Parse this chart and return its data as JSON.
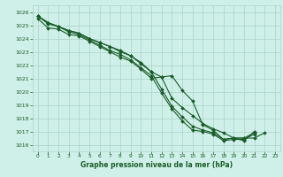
{
  "title": "Graphe pression niveau de la mer (hPa)",
  "background_color": "#cff0e8",
  "grid_color": "#b0d8cc",
  "line_color": "#1a5c2a",
  "xlim": [
    -0.5,
    23.5
  ],
  "ylim": [
    1015.5,
    1026.5
  ],
  "yticks": [
    1016,
    1017,
    1018,
    1019,
    1020,
    1021,
    1022,
    1023,
    1024,
    1025,
    1026
  ],
  "xticks": [
    0,
    1,
    2,
    3,
    4,
    5,
    6,
    7,
    8,
    9,
    10,
    11,
    12,
    13,
    14,
    15,
    16,
    17,
    18,
    19,
    20,
    21,
    22,
    23
  ],
  "series": [
    [
      1025.7,
      1025.2,
      1024.9,
      1024.6,
      1024.4,
      1024.0,
      1023.7,
      1023.4,
      1023.1,
      1022.7,
      1022.2,
      1021.5,
      1021.1,
      1019.5,
      1018.8,
      1018.2,
      1017.6,
      1017.2,
      1016.9,
      1016.5,
      1016.5,
      1016.5,
      1016.9,
      null
    ],
    [
      1025.7,
      1025.2,
      1024.9,
      1024.6,
      1024.4,
      1024.0,
      1023.7,
      1023.4,
      1023.0,
      1022.7,
      1022.1,
      1021.5,
      1020.2,
      1018.9,
      1018.1,
      1017.4,
      1017.1,
      1016.9,
      1016.4,
      1016.5,
      1016.5,
      1016.9,
      null,
      null
    ],
    [
      1025.7,
      1025.1,
      1024.9,
      1024.5,
      1024.3,
      1023.9,
      1023.5,
      1023.1,
      1022.8,
      1022.4,
      1021.8,
      1021.2,
      1019.9,
      1018.7,
      1017.8,
      1017.1,
      1017.0,
      1016.8,
      1016.3,
      1016.4,
      1016.4,
      1016.8,
      null,
      null
    ],
    [
      1025.5,
      1024.8,
      1024.7,
      1024.3,
      1024.2,
      1023.8,
      1023.4,
      1023.0,
      1022.6,
      1022.3,
      1021.7,
      1021.0,
      1021.1,
      1021.2,
      1020.1,
      1019.3,
      1017.5,
      1017.1,
      1016.4,
      1016.5,
      1016.3,
      1017.0,
      null,
      null
    ]
  ]
}
